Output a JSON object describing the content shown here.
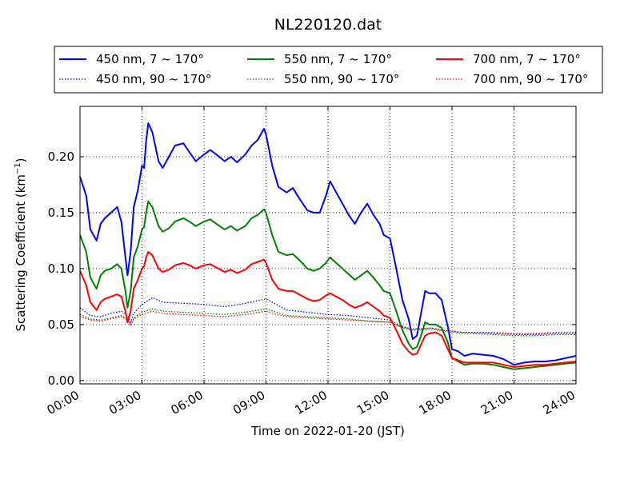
{
  "chart_data": {
    "type": "line",
    "title": "NL220120.dat",
    "xlabel": "Time on 2022-01-20 (JST)",
    "ylabel": "Scattering Coefficient (km",
    "ylabel_sup": "−1",
    "ylabel_end": ")",
    "xlim": [
      0,
      24
    ],
    "ylim": [
      -0.003,
      0.245
    ],
    "x_ticks": [
      0,
      3,
      6,
      9,
      12,
      15,
      18,
      21,
      24
    ],
    "x_tick_labels": [
      "00:00",
      "03:00",
      "06:00",
      "09:00",
      "12:00",
      "15:00",
      "18:00",
      "21:00",
      "24:00"
    ],
    "y_ticks": [
      0.0,
      0.05,
      0.1,
      0.15,
      0.2
    ],
    "y_tick_labels": [
      "0.00",
      "0.05",
      "0.10",
      "0.15",
      "0.20"
    ],
    "grid": true,
    "legend_position": "top",
    "series": [
      {
        "name": "450 nm, 7 ~ 170°",
        "color": "#0000ff",
        "style": "solid",
        "x": [
          0.0,
          0.3,
          0.5,
          0.8,
          1.0,
          1.2,
          1.5,
          1.8,
          2.0,
          2.2,
          2.3,
          2.45,
          2.6,
          2.8,
          3.0,
          3.1,
          3.2,
          3.3,
          3.5,
          3.8,
          4.0,
          4.3,
          4.6,
          5.0,
          5.3,
          5.6,
          6.0,
          6.3,
          6.6,
          7.0,
          7.3,
          7.6,
          8.0,
          8.3,
          8.6,
          8.9,
          9.0,
          9.3,
          9.6,
          10.0,
          10.3,
          10.6,
          11.0,
          11.3,
          11.6,
          11.9,
          12.1,
          12.4,
          12.7,
          13.0,
          13.3,
          13.6,
          13.9,
          14.2,
          14.5,
          14.7,
          15.0,
          15.3,
          15.6,
          15.9,
          16.1,
          16.3,
          16.5,
          16.7,
          16.9,
          17.2,
          17.5,
          17.8,
          18.0,
          18.3,
          18.6,
          19.0,
          19.5,
          20.0,
          20.5,
          21.0,
          21.5,
          22.0,
          22.5,
          23.0,
          23.5,
          24.0
        ],
        "y": [
          0.182,
          0.165,
          0.135,
          0.125,
          0.14,
          0.145,
          0.15,
          0.155,
          0.142,
          0.11,
          0.094,
          0.115,
          0.155,
          0.17,
          0.192,
          0.19,
          0.214,
          0.23,
          0.222,
          0.196,
          0.19,
          0.2,
          0.21,
          0.212,
          0.204,
          0.196,
          0.202,
          0.206,
          0.202,
          0.196,
          0.2,
          0.195,
          0.202,
          0.21,
          0.215,
          0.225,
          0.22,
          0.192,
          0.173,
          0.168,
          0.172,
          0.163,
          0.152,
          0.15,
          0.15,
          0.165,
          0.178,
          0.168,
          0.158,
          0.148,
          0.14,
          0.15,
          0.158,
          0.148,
          0.14,
          0.13,
          0.127,
          0.1,
          0.072,
          0.055,
          0.037,
          0.04,
          0.06,
          0.08,
          0.078,
          0.078,
          0.072,
          0.048,
          0.028,
          0.026,
          0.022,
          0.024,
          0.023,
          0.022,
          0.019,
          0.014,
          0.016,
          0.017,
          0.017,
          0.018,
          0.02,
          0.022
        ]
      },
      {
        "name": "450 nm, 90 ~ 170°",
        "color": "#0000ff",
        "style": "dotted",
        "x": [
          0.0,
          0.5,
          1.0,
          1.5,
          2.0,
          2.3,
          2.45,
          2.6,
          3.0,
          3.5,
          4.0,
          5.0,
          6.0,
          7.0,
          8.0,
          9.0,
          9.5,
          10.0,
          11.0,
          12.0,
          13.0,
          14.0,
          15.0,
          15.5,
          16.0,
          16.5,
          17.0,
          17.5,
          18.0,
          18.5,
          19.0,
          20.0,
          21.0,
          22.0,
          23.0,
          24.0
        ],
        "y": [
          0.065,
          0.058,
          0.057,
          0.06,
          0.062,
          0.058,
          0.052,
          0.06,
          0.068,
          0.074,
          0.07,
          0.069,
          0.068,
          0.066,
          0.069,
          0.073,
          0.068,
          0.063,
          0.061,
          0.059,
          0.058,
          0.056,
          0.054,
          0.049,
          0.046,
          0.046,
          0.047,
          0.045,
          0.044,
          0.043,
          0.043,
          0.042,
          0.041,
          0.041,
          0.042,
          0.042
        ]
      },
      {
        "name": "550 nm, 7 ~ 170°",
        "color": "#008000",
        "style": "solid",
        "x": [
          0.0,
          0.3,
          0.5,
          0.8,
          1.0,
          1.2,
          1.5,
          1.8,
          2.0,
          2.2,
          2.3,
          2.45,
          2.6,
          2.8,
          3.0,
          3.1,
          3.2,
          3.3,
          3.5,
          3.8,
          4.0,
          4.3,
          4.6,
          5.0,
          5.3,
          5.6,
          6.0,
          6.3,
          6.6,
          7.0,
          7.3,
          7.6,
          8.0,
          8.3,
          8.6,
          8.9,
          9.0,
          9.3,
          9.6,
          10.0,
          10.3,
          10.6,
          11.0,
          11.3,
          11.6,
          11.9,
          12.1,
          12.4,
          12.7,
          13.0,
          13.3,
          13.6,
          13.9,
          14.2,
          14.5,
          14.7,
          15.0,
          15.3,
          15.6,
          15.9,
          16.1,
          16.3,
          16.5,
          16.7,
          16.9,
          17.2,
          17.5,
          17.8,
          18.0,
          18.3,
          18.6,
          19.0,
          19.5,
          20.0,
          20.5,
          21.0,
          21.5,
          22.0,
          22.5,
          23.0,
          23.5,
          24.0
        ],
        "y": [
          0.13,
          0.115,
          0.092,
          0.082,
          0.094,
          0.098,
          0.1,
          0.104,
          0.1,
          0.08,
          0.065,
          0.08,
          0.11,
          0.12,
          0.135,
          0.137,
          0.15,
          0.16,
          0.155,
          0.138,
          0.133,
          0.136,
          0.142,
          0.145,
          0.142,
          0.138,
          0.142,
          0.144,
          0.14,
          0.135,
          0.138,
          0.134,
          0.138,
          0.145,
          0.148,
          0.153,
          0.15,
          0.13,
          0.115,
          0.112,
          0.113,
          0.108,
          0.1,
          0.098,
          0.1,
          0.105,
          0.11,
          0.105,
          0.1,
          0.095,
          0.09,
          0.094,
          0.098,
          0.092,
          0.085,
          0.08,
          0.078,
          0.062,
          0.045,
          0.033,
          0.028,
          0.03,
          0.04,
          0.052,
          0.05,
          0.05,
          0.047,
          0.034,
          0.02,
          0.017,
          0.014,
          0.015,
          0.015,
          0.014,
          0.012,
          0.01,
          0.011,
          0.012,
          0.013,
          0.014,
          0.015,
          0.016
        ]
      },
      {
        "name": "550 nm, 90 ~ 170°",
        "color": "#008000",
        "style": "dotted",
        "x": [
          0.0,
          0.5,
          1.0,
          1.5,
          2.0,
          2.3,
          2.45,
          2.6,
          3.0,
          3.5,
          4.0,
          5.0,
          6.0,
          7.0,
          8.0,
          9.0,
          9.5,
          10.0,
          11.0,
          12.0,
          13.0,
          14.0,
          15.0,
          15.5,
          16.0,
          16.5,
          17.0,
          17.5,
          18.0,
          18.5,
          19.0,
          20.0,
          21.0,
          22.0,
          23.0,
          24.0
        ],
        "y": [
          0.059,
          0.055,
          0.054,
          0.056,
          0.058,
          0.055,
          0.05,
          0.056,
          0.061,
          0.064,
          0.062,
          0.061,
          0.06,
          0.059,
          0.061,
          0.064,
          0.061,
          0.058,
          0.057,
          0.056,
          0.055,
          0.053,
          0.052,
          0.048,
          0.045,
          0.045,
          0.046,
          0.044,
          0.043,
          0.042,
          0.042,
          0.041,
          0.04,
          0.04,
          0.041,
          0.041
        ]
      },
      {
        "name": "700 nm, 7 ~ 170°",
        "color": "#ff0000",
        "style": "solid",
        "x": [
          0.0,
          0.3,
          0.5,
          0.8,
          1.0,
          1.2,
          1.5,
          1.8,
          2.0,
          2.2,
          2.3,
          2.45,
          2.6,
          2.8,
          3.0,
          3.1,
          3.2,
          3.3,
          3.5,
          3.8,
          4.0,
          4.3,
          4.6,
          5.0,
          5.3,
          5.6,
          6.0,
          6.3,
          6.6,
          7.0,
          7.3,
          7.6,
          8.0,
          8.3,
          8.6,
          8.9,
          9.0,
          9.3,
          9.6,
          10.0,
          10.3,
          10.6,
          11.0,
          11.3,
          11.6,
          11.9,
          12.1,
          12.4,
          12.7,
          13.0,
          13.3,
          13.6,
          13.9,
          14.2,
          14.5,
          14.7,
          15.0,
          15.3,
          15.6,
          15.9,
          16.1,
          16.3,
          16.5,
          16.7,
          16.9,
          17.2,
          17.5,
          17.8,
          18.0,
          18.3,
          18.6,
          19.0,
          19.5,
          20.0,
          20.5,
          21.0,
          21.5,
          22.0,
          22.5,
          23.0,
          23.5,
          24.0
        ],
        "y": [
          0.098,
          0.085,
          0.07,
          0.063,
          0.07,
          0.073,
          0.075,
          0.077,
          0.075,
          0.062,
          0.052,
          0.062,
          0.082,
          0.09,
          0.1,
          0.102,
          0.11,
          0.115,
          0.112,
          0.1,
          0.097,
          0.099,
          0.103,
          0.105,
          0.103,
          0.1,
          0.103,
          0.104,
          0.101,
          0.097,
          0.099,
          0.096,
          0.099,
          0.104,
          0.106,
          0.108,
          0.105,
          0.09,
          0.082,
          0.08,
          0.08,
          0.077,
          0.073,
          0.071,
          0.072,
          0.076,
          0.078,
          0.075,
          0.072,
          0.068,
          0.065,
          0.067,
          0.07,
          0.066,
          0.062,
          0.058,
          0.056,
          0.045,
          0.033,
          0.026,
          0.023,
          0.024,
          0.032,
          0.04,
          0.042,
          0.043,
          0.04,
          0.028,
          0.02,
          0.018,
          0.016,
          0.016,
          0.016,
          0.016,
          0.014,
          0.012,
          0.013,
          0.014,
          0.014,
          0.015,
          0.016,
          0.017
        ]
      },
      {
        "name": "700 nm, 90 ~ 170°",
        "color": "#ff0000",
        "style": "dotted",
        "x": [
          0.0,
          0.5,
          1.0,
          1.5,
          2.0,
          2.3,
          2.45,
          2.6,
          3.0,
          3.5,
          4.0,
          5.0,
          6.0,
          7.0,
          8.0,
          9.0,
          9.5,
          10.0,
          11.0,
          12.0,
          13.0,
          14.0,
          15.0,
          15.5,
          16.0,
          16.5,
          17.0,
          17.5,
          18.0,
          18.5,
          19.0,
          20.0,
          21.0,
          22.0,
          23.0,
          24.0
        ],
        "y": [
          0.057,
          0.054,
          0.053,
          0.055,
          0.057,
          0.054,
          0.049,
          0.055,
          0.059,
          0.062,
          0.06,
          0.059,
          0.058,
          0.057,
          0.059,
          0.062,
          0.059,
          0.057,
          0.056,
          0.055,
          0.054,
          0.053,
          0.052,
          0.048,
          0.046,
          0.046,
          0.047,
          0.045,
          0.044,
          0.043,
          0.043,
          0.043,
          0.042,
          0.042,
          0.043,
          0.043
        ]
      }
    ]
  }
}
